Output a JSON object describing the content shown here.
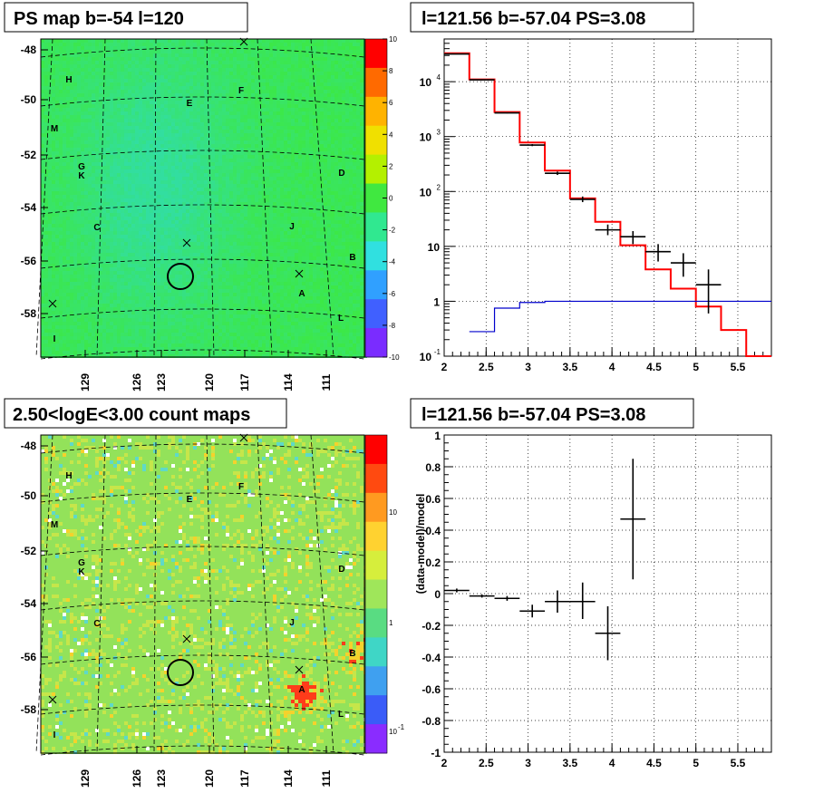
{
  "panels": {
    "top_left": {
      "title": "PS map b=-54 l=120",
      "y_ticks": [
        "-48",
        "-50",
        "-52",
        "-54",
        "-56",
        "-58"
      ],
      "x_ticks": [
        "129",
        "126",
        "123",
        "120",
        "117",
        "114",
        "111"
      ],
      "palette_ticks": [
        "10",
        "8",
        "6",
        "4",
        "2",
        "0",
        "-2",
        "-4",
        "-6",
        "-8",
        "-10"
      ],
      "sources": [
        {
          "label": "H"
        },
        {
          "label": "E"
        },
        {
          "label": "F"
        },
        {
          "label": "M"
        },
        {
          "label": "G"
        },
        {
          "label": "K"
        },
        {
          "label": "D"
        },
        {
          "label": "C"
        },
        {
          "label": "J"
        },
        {
          "label": "B"
        },
        {
          "label": "A"
        },
        {
          "label": "L"
        },
        {
          "label": "I"
        }
      ]
    },
    "bottom_left": {
      "title": "2.50<logE<3.00 count maps",
      "y_ticks": [
        "-48",
        "-50",
        "-52",
        "-54",
        "-56",
        "-58"
      ],
      "x_ticks": [
        "129",
        "126",
        "123",
        "120",
        "117",
        "114",
        "111"
      ],
      "palette_ticks": [
        "10",
        "1",
        "10",
        "-1"
      ],
      "sources": [
        {
          "label": "H"
        },
        {
          "label": "E"
        },
        {
          "label": "F"
        },
        {
          "label": "M"
        },
        {
          "label": "G"
        },
        {
          "label": "K"
        },
        {
          "label": "D"
        },
        {
          "label": "C"
        },
        {
          "label": "J"
        },
        {
          "label": "B"
        },
        {
          "label": "A"
        },
        {
          "label": "L"
        },
        {
          "label": "I"
        }
      ]
    }
  },
  "colors": {
    "map_green": "#3ee84a",
    "map_cyan": "#3fe9a0",
    "count_green": "#9be65a",
    "hot_red": "#ff2a1a",
    "model_red": "#ff0000",
    "bkg_blue": "#0000cc"
  },
  "chart_data": [
    {
      "type": "line",
      "title": "l=121.56 b=-57.04 PS=3.08",
      "xlabel": "",
      "ylabel": "",
      "xlim": [
        2,
        5.9
      ],
      "ylim": [
        0.1,
        60000
      ],
      "yscale": "log",
      "grid": true,
      "x_ticks": [
        "2",
        "2.5",
        "3",
        "3.5",
        "4",
        "4.5",
        "5",
        "5.5"
      ],
      "y_ticks": [
        {
          "base": "10",
          "exp": "-1"
        },
        {
          "base": "1",
          "exp": ""
        },
        {
          "base": "10",
          "exp": ""
        },
        {
          "base": "10",
          "exp": "2"
        },
        {
          "base": "10",
          "exp": "3"
        },
        {
          "base": "10",
          "exp": "4"
        }
      ],
      "series": [
        {
          "kind": "step",
          "color": "#ff0000",
          "edges": [
            2,
            2.3,
            2.6,
            2.9,
            3.2,
            3.5,
            3.8,
            4.1,
            4.4,
            4.7,
            5.0,
            5.3,
            5.6,
            5.9
          ],
          "values": [
            33000,
            11000,
            2800,
            780,
            240,
            75,
            28,
            10.5,
            3.8,
            1.7,
            0.8,
            0.3,
            0.1
          ]
        },
        {
          "kind": "step",
          "color": "#0000cc",
          "edges": [
            2.3,
            2.6,
            2.9,
            3.2,
            5.9
          ],
          "values": [
            0.28,
            0.75,
            0.95,
            1.0
          ]
        },
        {
          "kind": "errorbar",
          "color": "#000000",
          "points": [
            {
              "x": 2.15,
              "y": 32000,
              "xerr": 0.15,
              "ylo": 31600,
              "yhi": 32400
            },
            {
              "x": 2.45,
              "y": 10800,
              "xerr": 0.15,
              "ylo": 10600,
              "yhi": 11000
            },
            {
              "x": 2.75,
              "y": 2700,
              "xerr": 0.15,
              "ylo": 2650,
              "yhi": 2750
            },
            {
              "x": 3.05,
              "y": 700,
              "xerr": 0.15,
              "ylo": 670,
              "yhi": 730
            },
            {
              "x": 3.35,
              "y": 215,
              "xerr": 0.15,
              "ylo": 200,
              "yhi": 230
            },
            {
              "x": 3.65,
              "y": 72,
              "xerr": 0.15,
              "ylo": 64,
              "yhi": 81
            },
            {
              "x": 3.95,
              "y": 20,
              "xerr": 0.15,
              "ylo": 16,
              "yhi": 25
            },
            {
              "x": 4.25,
              "y": 15,
              "xerr": 0.15,
              "ylo": 11,
              "yhi": 19
            },
            {
              "x": 4.55,
              "y": 8,
              "xerr": 0.15,
              "ylo": 5.3,
              "yhi": 11
            },
            {
              "x": 4.85,
              "y": 5,
              "xerr": 0.15,
              "ylo": 2.8,
              "yhi": 7.5
            },
            {
              "x": 5.15,
              "y": 2,
              "xerr": 0.15,
              "ylo": 0.6,
              "yhi": 3.8
            }
          ]
        }
      ]
    },
    {
      "type": "scatter",
      "title": "l=121.56 b=-57.04 PS=3.08",
      "xlabel": "",
      "ylabel": "(data-model)/model",
      "xlim": [
        2,
        5.9
      ],
      "ylim": [
        -1,
        1
      ],
      "grid": true,
      "x_ticks": [
        "2",
        "2.5",
        "3",
        "3.5",
        "4",
        "4.5",
        "5",
        "5.5"
      ],
      "y_ticks": [
        "-1",
        "-0.8",
        "-0.6",
        "-0.4",
        "-0.2",
        "0",
        "0.2",
        "0.4",
        "0.6",
        "0.8",
        "1"
      ],
      "series": [
        {
          "kind": "errorbar",
          "color": "#000000",
          "points": [
            {
              "x": 2.15,
              "y": 0.02,
              "xerr": 0.15,
              "ylo": 0.008,
              "yhi": 0.032
            },
            {
              "x": 2.45,
              "y": -0.015,
              "xerr": 0.15,
              "ylo": -0.025,
              "yhi": -0.005
            },
            {
              "x": 2.75,
              "y": -0.03,
              "xerr": 0.15,
              "ylo": -0.045,
              "yhi": -0.015
            },
            {
              "x": 3.05,
              "y": -0.11,
              "xerr": 0.15,
              "ylo": -0.15,
              "yhi": -0.07
            },
            {
              "x": 3.35,
              "y": -0.05,
              "xerr": 0.15,
              "ylo": -0.12,
              "yhi": 0.02
            },
            {
              "x": 3.65,
              "y": -0.05,
              "xerr": 0.15,
              "ylo": -0.16,
              "yhi": 0.07
            },
            {
              "x": 3.95,
              "y": -0.25,
              "xerr": 0.15,
              "ylo": -0.42,
              "yhi": -0.08
            },
            {
              "x": 4.25,
              "y": 0.47,
              "xerr": 0.15,
              "ylo": 0.09,
              "yhi": 0.85
            }
          ]
        }
      ]
    }
  ]
}
